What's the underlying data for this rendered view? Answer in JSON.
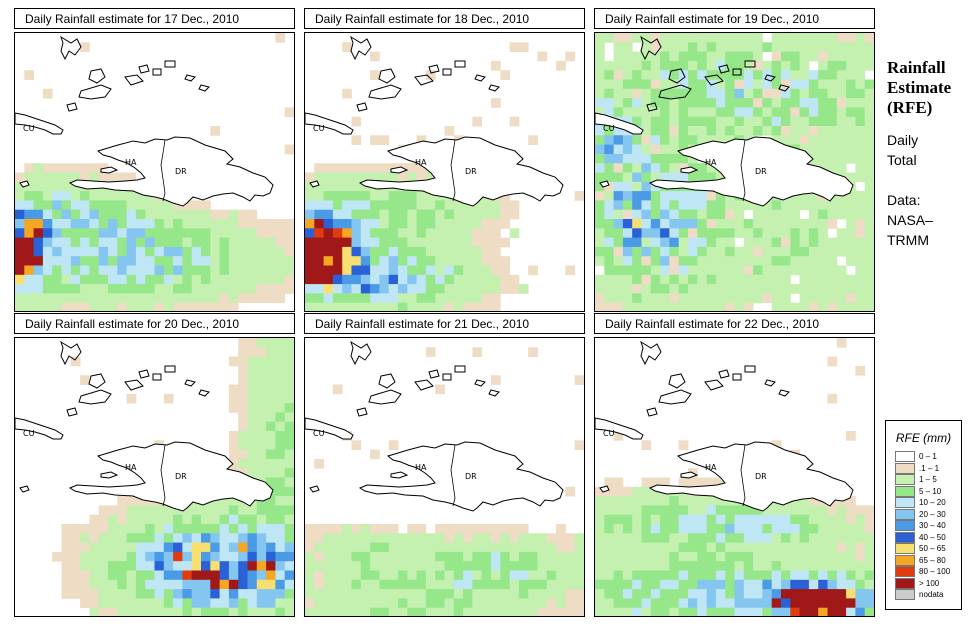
{
  "panels": [
    {
      "title": "Daily Rainfall estimate for  17 Dec., 2010",
      "pattern": "d17"
    },
    {
      "title": "Daily Rainfall estimate for  18 Dec., 2010",
      "pattern": "d18"
    },
    {
      "title": "Daily Rainfall estimate for  19 Dec., 2010",
      "pattern": "d19"
    },
    {
      "title": "Daily Rainfall estimate for  20 Dec., 2010",
      "pattern": "d20"
    },
    {
      "title": "Daily Rainfall estimate for  21 Dec., 2010",
      "pattern": "d21"
    },
    {
      "title": "Daily Rainfall estimate for  22 Dec., 2010",
      "pattern": "d22"
    }
  ],
  "map_labels": {
    "cuba": "CU",
    "haiti": "HA",
    "dominican_republic": "DR"
  },
  "sidebar": {
    "title_lines": [
      "Rainfall",
      "Estimate",
      "(RFE)"
    ],
    "subtitle_lines": [
      "Daily",
      "Total"
    ],
    "source_lines": [
      "Data:",
      "NASA–",
      "TRMM"
    ]
  },
  "legend": {
    "title": "RFE (mm)",
    "items": [
      {
        "label": "0 – 1",
        "color": "#ffffff"
      },
      {
        "label": ".1 – 1",
        "color": "#eedcc4"
      },
      {
        "label": "1 – 5",
        "color": "#c4f0b0"
      },
      {
        "label": "5 – 10",
        "color": "#96e68a"
      },
      {
        "label": "10 – 20",
        "color": "#bfe6f5"
      },
      {
        "label": "20 – 30",
        "color": "#84c6f0"
      },
      {
        "label": "30 – 40",
        "color": "#4a9ae6"
      },
      {
        "label": "40 – 50",
        "color": "#2a62d6"
      },
      {
        "label": "50 – 65",
        "color": "#f7e070"
      },
      {
        "label": "65 – 80",
        "color": "#f5a623"
      },
      {
        "label": "80 – 100",
        "color": "#e03c10"
      },
      {
        "label": "> 100",
        "color": "#a01818"
      },
      {
        "label": "nodata",
        "color": "#cccccc"
      }
    ]
  }
}
